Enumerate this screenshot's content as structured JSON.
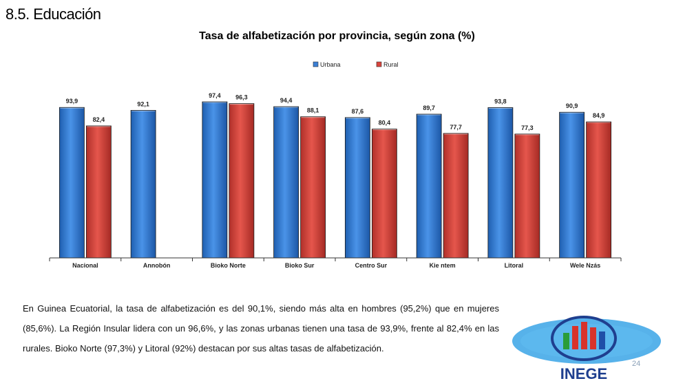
{
  "section": {
    "title": "8.5. Educación"
  },
  "chart_data": {
    "type": "bar",
    "title": "Tasa de alfabetización por provincia, según zona (%)",
    "categories": [
      "Nacional",
      "Annobón",
      "Bioko Norte",
      "Bioko Sur",
      "Centro Sur",
      "Kie ntem",
      "Litoral",
      "Wele Nzás"
    ],
    "series": [
      {
        "name": "Urbana",
        "color": "#3b7fd4",
        "values": [
          93.9,
          92.1,
          97.4,
          94.4,
          87.6,
          89.7,
          93.8,
          90.9
        ],
        "labels": [
          "93,9",
          "92,1",
          "97,4",
          "94,4",
          "87,6",
          "89,7",
          "93,8",
          "90,9"
        ]
      },
      {
        "name": "Rural",
        "color": "#d9443c",
        "values": [
          82.4,
          null,
          96.3,
          88.1,
          80.4,
          77.7,
          77.3,
          84.9
        ],
        "labels": [
          "82,4",
          "",
          "96,3",
          "88,1",
          "80,4",
          "77,7",
          "77,3",
          "84,9"
        ]
      }
    ],
    "ylim": [
      0,
      100
    ],
    "legend": "top-center",
    "grid": false
  },
  "text": {
    "paragraph": "En Guinea Ecuatorial, la tasa de alfabetización es del 90,1%, siendo más alta en hombres (95,2%) que en mujeres (85,6%). La Región Insular lidera con un 96,6%, y las zonas urbanas tienen una tasa de 93,9%, frente al 82,4% en las rurales. Bioko Norte (97,3%) y Litoral (92%) destacan por sus altas tasas de alfabetización."
  },
  "page": {
    "number": "24"
  },
  "logo": {
    "text": "INEGE"
  }
}
